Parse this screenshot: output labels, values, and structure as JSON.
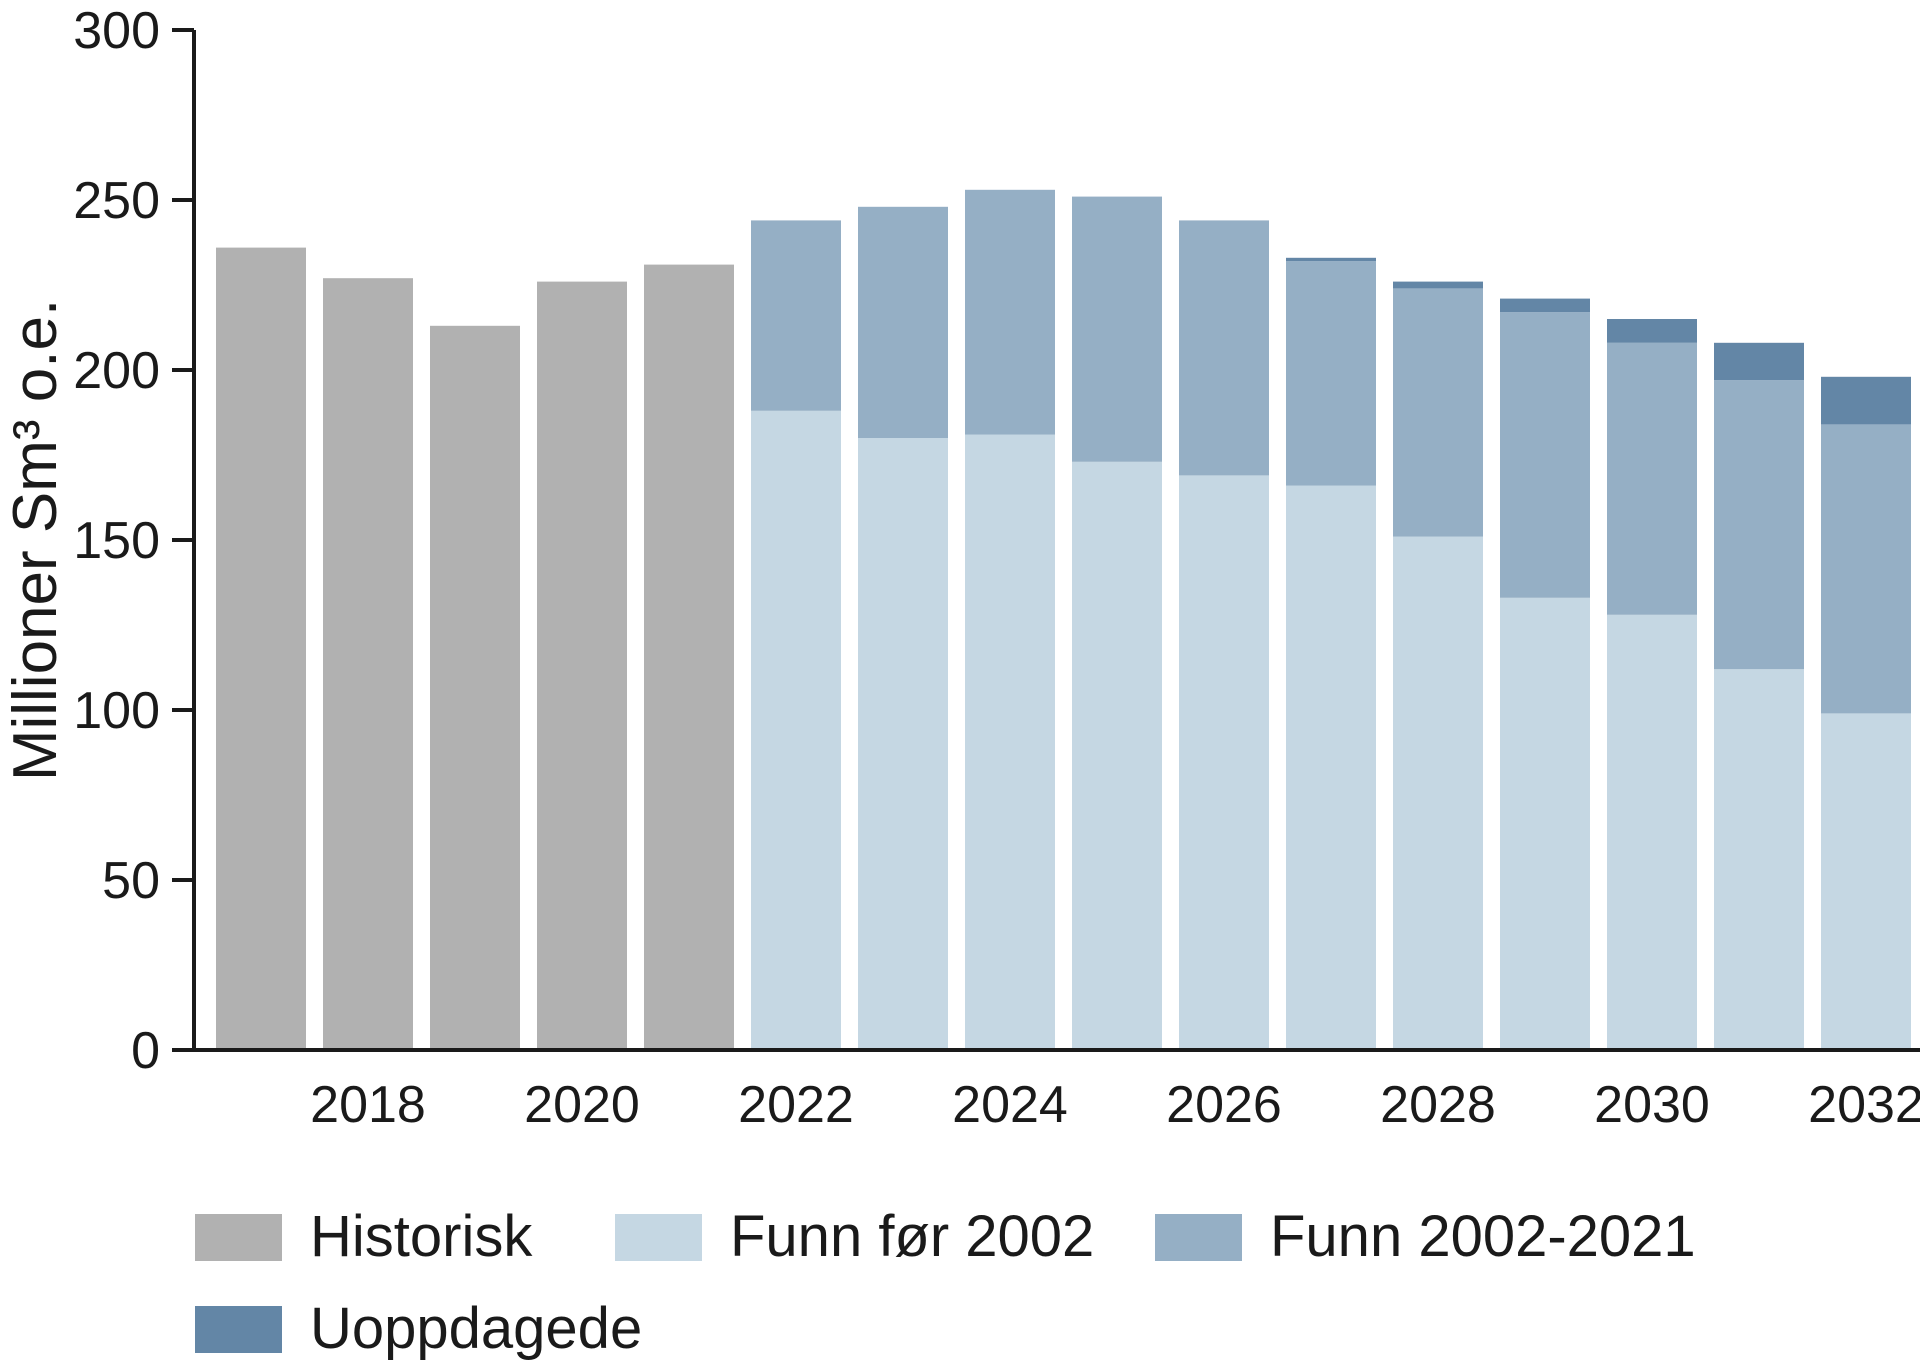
{
  "chart_data": {
    "type": "bar",
    "stacked": true,
    "ylabel": "Millioner Sm³ o.e.",
    "ylim": [
      0,
      300
    ],
    "yticks": [
      0,
      50,
      100,
      150,
      200,
      250,
      300
    ],
    "categories": [
      "2017",
      "2018",
      "2019",
      "2020",
      "2021",
      "2022",
      "2023",
      "2024",
      "2025",
      "2026",
      "2027",
      "2028",
      "2029",
      "2030",
      "2031",
      "2032"
    ],
    "xtick_labels": [
      "2018",
      "2020",
      "2022",
      "2024",
      "2026",
      "2028",
      "2030",
      "2032"
    ],
    "series": [
      {
        "name": "Historisk",
        "color": "#b1b1b1",
        "values": [
          236,
          227,
          213,
          226,
          231,
          0,
          0,
          0,
          0,
          0,
          0,
          0,
          0,
          0,
          0,
          0
        ]
      },
      {
        "name": "Funn før 2002",
        "color": "#c5d7e3",
        "values": [
          0,
          0,
          0,
          0,
          0,
          188,
          180,
          181,
          173,
          169,
          166,
          151,
          133,
          128,
          112,
          99
        ]
      },
      {
        "name": "Funn 2002-2021",
        "color": "#95afc5",
        "values": [
          0,
          0,
          0,
          0,
          0,
          56,
          68,
          72,
          78,
          75,
          66,
          73,
          84,
          80,
          85,
          85
        ]
      },
      {
        "name": "Uoppdagede",
        "color": "#6386a6",
        "values": [
          0,
          0,
          0,
          0,
          0,
          0,
          0,
          0,
          0,
          0,
          1,
          2,
          4,
          7,
          11,
          14
        ]
      }
    ],
    "legend_position": "bottom",
    "grid": false
  }
}
